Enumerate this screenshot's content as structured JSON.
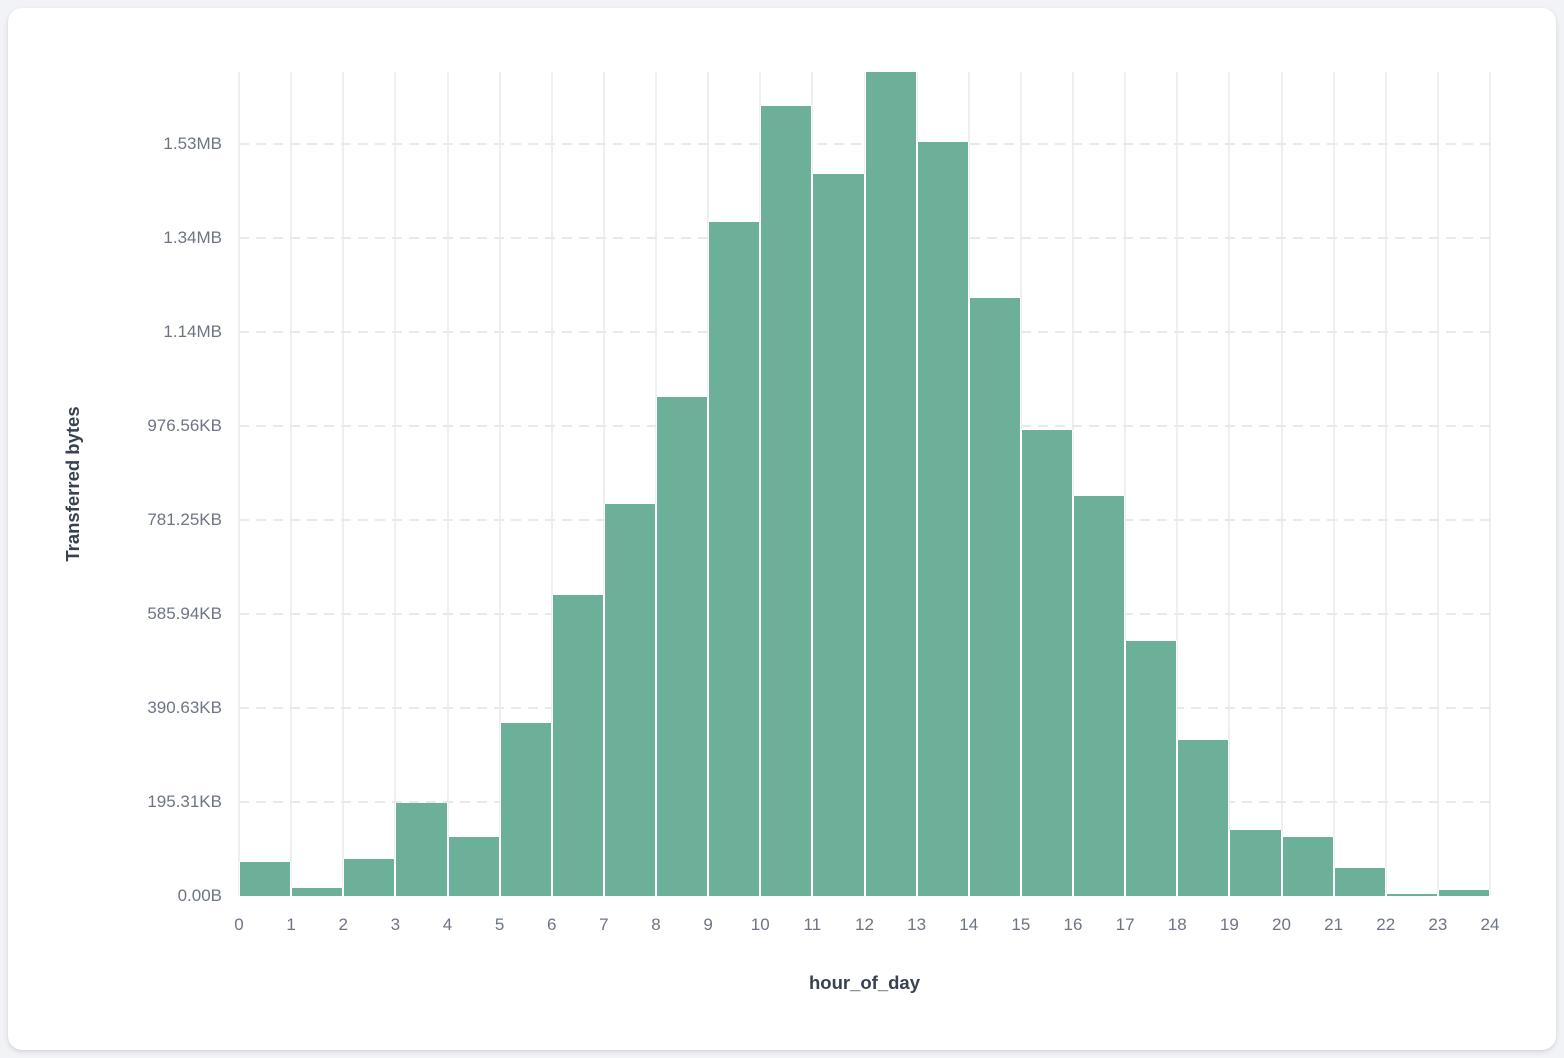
{
  "chart_data": {
    "type": "bar",
    "title": "",
    "xlabel": "hour_of_day",
    "ylabel": "Transferred bytes",
    "categories": [
      0,
      1,
      2,
      3,
      4,
      5,
      6,
      7,
      8,
      9,
      10,
      11,
      12,
      13,
      14,
      15,
      16,
      17,
      18,
      19,
      20,
      21,
      22,
      23
    ],
    "values": [
      72340,
      17021,
      78723,
      197872,
      125532,
      368085,
      640426,
      834043,
      1061702,
      1434043,
      1680851,
      1536170,
      1753191,
      1604255,
      1272340,
      991489,
      851064,
      542553,
      331915,
      140426,
      125532,
      59574,
      5319,
      12766
    ],
    "value_unit": "bytes",
    "xlim": [
      0,
      24
    ],
    "ylim": [
      0,
      1753191
    ],
    "x_ticks": [
      "0",
      "1",
      "2",
      "3",
      "4",
      "5",
      "6",
      "7",
      "8",
      "9",
      "10",
      "11",
      "12",
      "13",
      "14",
      "15",
      "16",
      "17",
      "18",
      "19",
      "20",
      "21",
      "22",
      "23",
      "24"
    ],
    "y_ticks": [
      {
        "value": 0,
        "label": "0.00B"
      },
      {
        "value": 200000,
        "label": "195.31KB"
      },
      {
        "value": 400000,
        "label": "390.63KB"
      },
      {
        "value": 600000,
        "label": "585.94KB"
      },
      {
        "value": 800000,
        "label": "781.25KB"
      },
      {
        "value": 1000000,
        "label": "976.56KB"
      },
      {
        "value": 1200000,
        "label": "1.14MB"
      },
      {
        "value": 1400000,
        "label": "1.34MB"
      },
      {
        "value": 1600000,
        "label": "1.53MB"
      }
    ],
    "grid": {
      "horizontal": "dashed",
      "vertical": "solid"
    },
    "legend": "none"
  },
  "colors": {
    "bar_fill": "#6cb09a",
    "bar_stroke": "#ffffff",
    "grid_vertical": "#edeff3",
    "grid_horizontal": "#e6e9ee",
    "tick_label": "#6d7585",
    "axis_title": "#384150",
    "card_background": "#ffffff",
    "page_background": "#f2f3f6"
  }
}
